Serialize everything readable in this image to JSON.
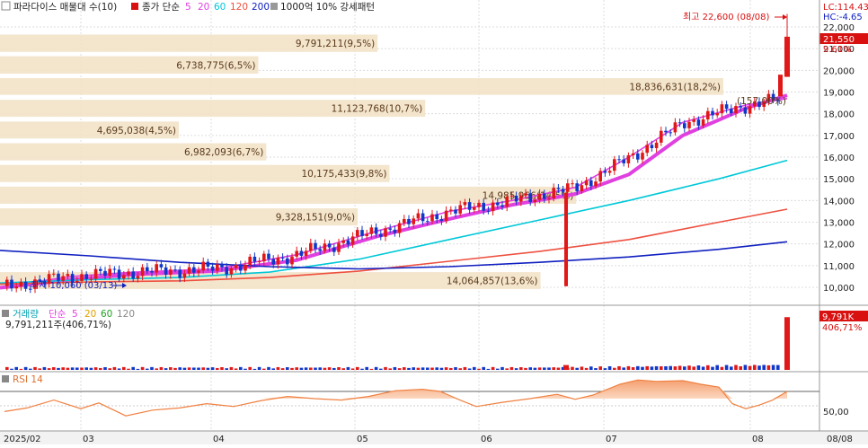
{
  "legend": {
    "toggle_icon": "checkbox-icon",
    "title": "파라다이스 매물대 수(10)",
    "price_label": "종가 단순",
    "ma_periods": [
      "5",
      "20",
      "60",
      "120",
      "200"
    ],
    "ma_colors": [
      "#e040e0",
      "#e040e0",
      "#00c8d8",
      "#ee5040",
      "#1020c0"
    ],
    "pattern_label": "1000억 10% 강세패턴"
  },
  "top_right": {
    "lc": "LC:114.43",
    "hc": "HC:-4.65"
  },
  "high_annotation": "최고 22,600 (08/08)",
  "low_annotation": "최저 10,060 (03/13)",
  "current_price": "21,550",
  "current_change": "9.61%",
  "volume_panel": {
    "title": "거래량",
    "ma_label": "단순",
    "ma_periods": [
      "5",
      "20",
      "60",
      "120"
    ],
    "value_text": "9,791,211주(406,71%)",
    "badge_value": "9,791K",
    "badge_pct": "406,71%"
  },
  "rsi_panel": {
    "title": "RSI 14",
    "level_label": "50,00"
  },
  "chart_data": [
    {
      "type": "candlestick",
      "y_axis_ticks": [
        "22,000",
        "21,000",
        "20,000",
        "19,000",
        "18,000",
        "17,000",
        "16,000",
        "15,000",
        "14,000",
        "13,000",
        "12,000",
        "11,000",
        "10,000"
      ],
      "ylim": [
        9600,
        22700
      ],
      "x_axis_labels": [
        "2025/02",
        "03",
        "04",
        "05",
        "06",
        "07",
        "08",
        "08/08"
      ],
      "volume_profile": [
        {
          "label": "9,791,211(9,5%)",
          "price_low": 20850,
          "price_high": 21650,
          "pct": 9.5
        },
        {
          "label": "6,738,775(6,5%)",
          "price_low": 19850,
          "price_high": 20650,
          "pct": 6.5
        },
        {
          "label": "18,836,631(18,2%)",
          "price_low": 18870,
          "price_high": 19640,
          "pct": 18.2
        },
        {
          "label": "11,123,768(10,7%)",
          "price_low": 17860,
          "price_high": 18640,
          "pct": 10.7
        },
        {
          "label": "4,695,038(4,5%)",
          "price_low": 16860,
          "price_high": 17640,
          "pct": 4.5
        },
        {
          "label": "6,982,093(6,7%)",
          "price_low": 15850,
          "price_high": 16640,
          "pct": 6.7
        },
        {
          "label": "10,175,433(9,8%)",
          "price_low": 14850,
          "price_high": 15640,
          "pct": 9.8
        },
        {
          "label": "14,985,966(14,5%)",
          "price_low": 13850,
          "price_high": 14640,
          "pct": 14.5
        },
        {
          "label": "9,328,151(9,0%)",
          "price_low": 12850,
          "price_high": 13640,
          "pct": 9.0
        },
        {
          "label": "14,064,857(13,6%)",
          "price_low": 9920,
          "price_high": 10700,
          "pct": 13.6
        }
      ],
      "extra_price_label": "(157,00%)",
      "series": [
        {
          "name": "5",
          "color": "#e040e0",
          "points": [
            [
              0,
              10020
            ],
            [
              80,
              10500
            ],
            [
              150,
              10700
            ],
            [
              240,
              10850
            ],
            [
              330,
              11500
            ],
            [
              420,
              12600
            ],
            [
              500,
              13500
            ],
            [
              570,
              14000
            ],
            [
              640,
              14600
            ],
            [
              700,
              16000
            ],
            [
              760,
              17600
            ],
            [
              830,
              18400
            ],
            [
              876,
              18700
            ]
          ]
        },
        {
          "name": "20",
          "color": "#e040e0",
          "points": [
            [
              0,
              9980
            ],
            [
              80,
              10350
            ],
            [
              150,
              10600
            ],
            [
              240,
              10750
            ],
            [
              330,
              11250
            ],
            [
              420,
              12350
            ],
            [
              500,
              13150
            ],
            [
              570,
              13800
            ],
            [
              640,
              14300
            ],
            [
              700,
              15200
            ],
            [
              760,
              17000
            ],
            [
              830,
              18250
            ],
            [
              876,
              18850
            ]
          ]
        },
        {
          "name": "60",
          "color": "#00c8d8",
          "points": [
            [
              0,
              10200
            ],
            [
              100,
              10350
            ],
            [
              200,
              10450
            ],
            [
              300,
              10700
            ],
            [
              400,
              11300
            ],
            [
              500,
              12200
            ],
            [
              600,
              13100
            ],
            [
              700,
              14000
            ],
            [
              800,
              15000
            ],
            [
              876,
              15850
            ]
          ]
        },
        {
          "name": "120",
          "color": "#ee5040",
          "points": [
            [
              0,
              10150
            ],
            [
              100,
              10250
            ],
            [
              200,
              10300
            ],
            [
              300,
              10450
            ],
            [
              400,
              10750
            ],
            [
              500,
              11200
            ],
            [
              600,
              11650
            ],
            [
              700,
              12200
            ],
            [
              800,
              13000
            ],
            [
              876,
              13600
            ]
          ]
        },
        {
          "name": "200",
          "color": "#1020c0",
          "points": [
            [
              0,
              11700
            ],
            [
              100,
              11450
            ],
            [
              200,
              11150
            ],
            [
              300,
              10950
            ],
            [
              400,
              10850
            ],
            [
              500,
              10950
            ],
            [
              600,
              11150
            ],
            [
              700,
              11400
            ],
            [
              800,
              11750
            ],
            [
              876,
              12100
            ]
          ]
        }
      ]
    },
    {
      "type": "bar",
      "name": "volume",
      "markers": [
        {
          "x": 630,
          "value": 900000
        },
        {
          "x": 876,
          "value": 9791211
        }
      ],
      "ylim": [
        0,
        10000000
      ]
    },
    {
      "type": "line",
      "name": "RSI 14",
      "ylim": [
        20,
        90
      ],
      "series": [
        {
          "name": "RSI",
          "points": [
            [
              5,
              42
            ],
            [
              30,
              47
            ],
            [
              60,
              58
            ],
            [
              90,
              46
            ],
            [
              110,
              54
            ],
            [
              140,
              36
            ],
            [
              170,
              44
            ],
            [
              200,
              47
            ],
            [
              230,
              53
            ],
            [
              260,
              49
            ],
            [
              290,
              57
            ],
            [
              320,
              63
            ],
            [
              350,
              60
            ],
            [
              380,
              58
            ],
            [
              410,
              63
            ],
            [
              440,
              71
            ],
            [
              470,
              73
            ],
            [
              490,
              70
            ],
            [
              510,
              59
            ],
            [
              530,
              49
            ],
            [
              560,
              55
            ],
            [
              590,
              60
            ],
            [
              620,
              66
            ],
            [
              640,
              59
            ],
            [
              660,
              65
            ],
            [
              690,
              80
            ],
            [
              710,
              86
            ],
            [
              730,
              84
            ],
            [
              760,
              85
            ],
            [
              780,
              80
            ],
            [
              800,
              76
            ],
            [
              815,
              53
            ],
            [
              830,
              46
            ],
            [
              845,
              51
            ],
            [
              860,
              58
            ],
            [
              876,
              70
            ]
          ]
        }
      ]
    }
  ]
}
